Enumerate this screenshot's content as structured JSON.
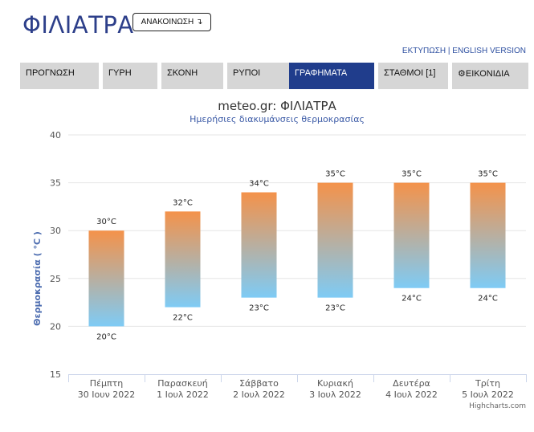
{
  "header": {
    "city": "ΦΙΛΙΑΤΡΑ",
    "announce_label": "ΑΝΑΚΟΙΝΩΣΗ ↴",
    "print_link": "ΕΚΤΥΠΩΣΗ",
    "separator": " | ",
    "english_link": "ENGLISH VERSION"
  },
  "nav": {
    "tabs": [
      {
        "label": "ΠΡΟΓΝΩΣΗ",
        "active": false
      },
      {
        "label": "ΓΥΡΗ",
        "active": false
      },
      {
        "label": "ΣΚΟΝΗ",
        "active": false
      },
      {
        "label": "ΡΥΠΟΙ",
        "active": false
      },
      {
        "label": "ΓΡΑΦΗΜΑΤΑ",
        "active": true
      },
      {
        "label": "ΣΤΑΘΜΟΙ [1]",
        "active": false
      },
      {
        "label": "⚙ΕΙΚΟΝΙΔΙΑ",
        "active": false
      }
    ]
  },
  "chart_data": {
    "type": "bar",
    "title": "meteo.gr: ΦΙΛΙΑΤΡΑ",
    "subtitle": "Ημερήσιες διακυμάνσεις θερμοκρασίας",
    "ylabel": "Θερμοκρασία ( °C )",
    "xlabel": "",
    "ylim": [
      15,
      40
    ],
    "yticks": [
      15,
      20,
      25,
      30,
      35,
      40
    ],
    "grid": true,
    "categories": [
      {
        "day": "Πέμπτη",
        "date": "30 Ιουν 2022"
      },
      {
        "day": "Παρασκευή",
        "date": "1 Ιουλ 2022"
      },
      {
        "day": "Σάββατο",
        "date": "2 Ιουλ 2022"
      },
      {
        "day": "Κυριακή",
        "date": "3 Ιουλ 2022"
      },
      {
        "day": "Δευτέρα",
        "date": "4 Ιουλ 2022"
      },
      {
        "day": "Τρίτη",
        "date": "5 Ιουλ 2022"
      }
    ],
    "low": [
      20,
      22,
      23,
      23,
      24,
      24
    ],
    "high": [
      30,
      32,
      34,
      35,
      35,
      35
    ],
    "unit": "°C",
    "colors": {
      "top": "#f4924a",
      "bottom": "#7ecbf5",
      "axis": "#ccd6eb",
      "grid": "#e6e6e6"
    },
    "credits": "Highcharts.com"
  }
}
